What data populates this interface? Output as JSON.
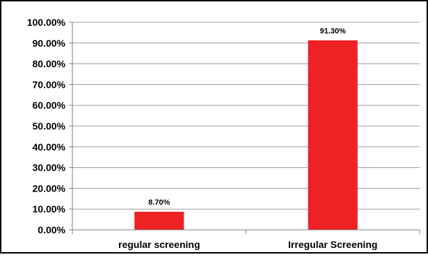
{
  "chart_data": {
    "type": "bar",
    "title": "",
    "xlabel": "",
    "ylabel": "",
    "categories": [
      "regular screening",
      "Irregular Screening"
    ],
    "values": [
      8.7,
      91.3
    ],
    "data_labels": [
      "8.70%",
      "91.30%"
    ],
    "ylim": [
      0,
      100
    ],
    "y_ticks": [
      0,
      10,
      20,
      30,
      40,
      50,
      60,
      70,
      80,
      90,
      100
    ],
    "y_tick_labels": [
      "0.00%",
      "10.00%",
      "20.00%",
      "30.00%",
      "40.00%",
      "50.00%",
      "60.00%",
      "70.00%",
      "80.00%",
      "90.00%",
      "100.00%"
    ],
    "grid": true,
    "legend": "none",
    "colors": {
      "bar": "#ee2124",
      "grid": "#9a9a9a",
      "axis": "#7f7f7f",
      "border": "#000000"
    }
  }
}
